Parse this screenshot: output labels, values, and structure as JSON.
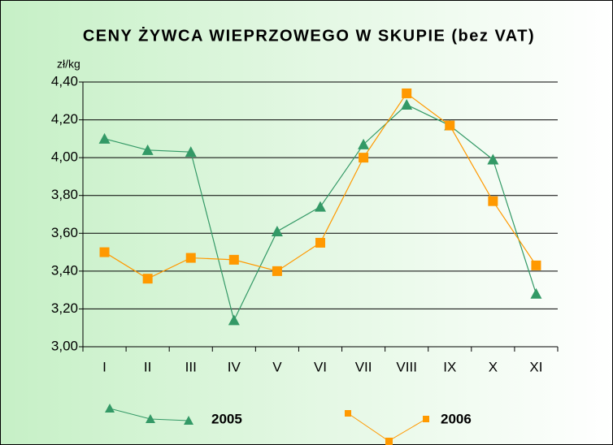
{
  "chart_data": {
    "type": "line",
    "title": "CENY ŻYWCA WIEPRZOWEGO W SKUPIE (bez VAT)",
    "y_label": "zł/kg",
    "categories": [
      "I",
      "II",
      "III",
      "IV",
      "V",
      "VI",
      "VII",
      "VIII",
      "IX",
      "X",
      "XI"
    ],
    "series": [
      {
        "name": "2005",
        "color": "#339966",
        "marker": "triangle",
        "values": [
          4.1,
          4.04,
          4.03,
          3.14,
          3.61,
          3.74,
          4.07,
          4.28,
          4.17,
          3.99,
          3.28
        ]
      },
      {
        "name": "2006",
        "color": "#ff9900",
        "marker": "square",
        "values": [
          3.5,
          3.36,
          3.47,
          3.46,
          3.4,
          3.55,
          4.0,
          4.34,
          4.17,
          3.77,
          3.43
        ]
      }
    ],
    "ylim": [
      3.0,
      4.4
    ],
    "yticks": [
      {
        "value": 3.0,
        "label": "3,00"
      },
      {
        "value": 3.2,
        "label": "3,20"
      },
      {
        "value": 3.4,
        "label": "3,40"
      },
      {
        "value": 3.6,
        "label": "3,60"
      },
      {
        "value": 3.8,
        "label": "3,80"
      },
      {
        "value": 4.0,
        "label": "4,00"
      },
      {
        "value": 4.2,
        "label": "4,20"
      },
      {
        "value": 4.4,
        "label": "4,40"
      }
    ],
    "grid": true
  }
}
